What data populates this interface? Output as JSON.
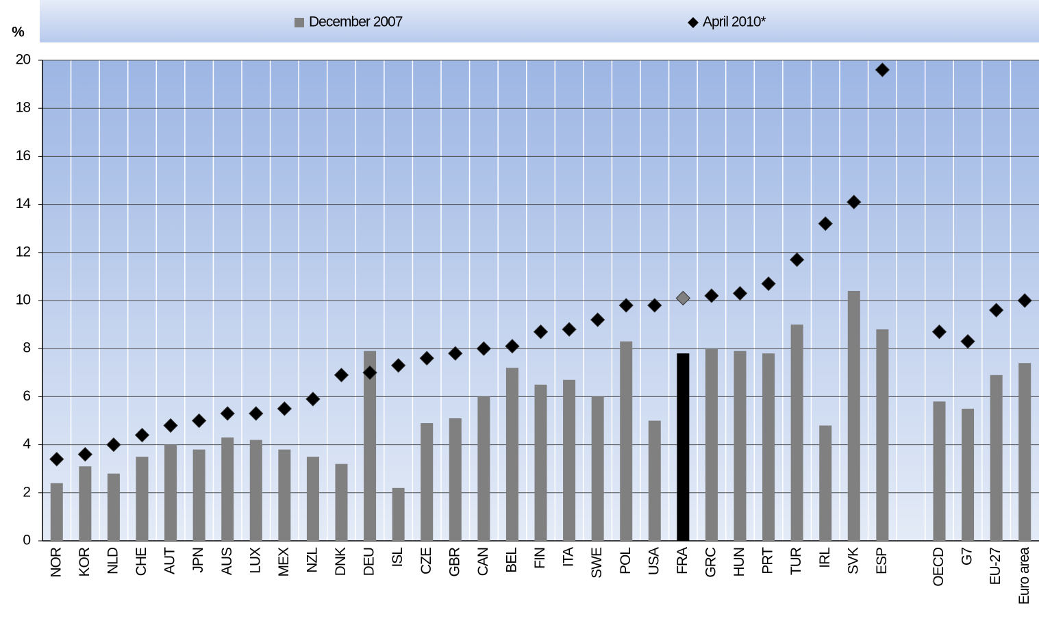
{
  "chart_data": {
    "type": "bar_marker",
    "ylabel": "%",
    "categories": [
      "NOR",
      "KOR",
      "NLD",
      "CHE",
      "AUT",
      "JPN",
      "AUS",
      "LUX",
      "MEX",
      "NZL",
      "DNK",
      "DEU",
      "ISL",
      "CZE",
      "GBR",
      "CAN",
      "BEL",
      "FIN",
      "ITA",
      "SWE",
      "POL",
      "USA",
      "FRA",
      "GRC",
      "HUN",
      "PRT",
      "TUR",
      "IRL",
      "SVK",
      "ESP",
      null,
      "OECD",
      "G7",
      "EU-27",
      "Euro area"
    ],
    "series": [
      {
        "name": "December 2007",
        "kind": "bar",
        "color": "#808080",
        "highlight_color": "#000000",
        "values": [
          2.4,
          3.1,
          2.8,
          3.5,
          4.0,
          3.8,
          4.3,
          4.2,
          3.8,
          3.5,
          3.2,
          7.9,
          2.2,
          4.9,
          5.1,
          6.0,
          7.2,
          6.5,
          6.7,
          6.0,
          8.3,
          5.0,
          7.8,
          8.0,
          7.9,
          7.8,
          9.0,
          4.8,
          10.4,
          8.8,
          null,
          5.8,
          5.5,
          6.9,
          7.4
        ]
      },
      {
        "name": "April 2010*",
        "kind": "marker",
        "color": "#000000",
        "highlight_color": "#808080",
        "values": [
          3.4,
          3.6,
          4.0,
          4.4,
          4.8,
          5.0,
          5.3,
          5.3,
          5.5,
          5.9,
          6.9,
          7.0,
          7.3,
          7.6,
          7.8,
          8.0,
          8.1,
          8.7,
          8.8,
          9.2,
          9.8,
          9.8,
          10.1,
          10.2,
          10.3,
          10.7,
          11.7,
          13.2,
          14.1,
          19.6,
          null,
          8.7,
          8.3,
          9.6,
          10.0
        ]
      }
    ],
    "highlight": "FRA",
    "ylim": [
      0,
      20
    ],
    "yticks": [
      0,
      2,
      4,
      6,
      8,
      10,
      12,
      14,
      16,
      18,
      20
    ],
    "grid": true,
    "legend": "top"
  }
}
